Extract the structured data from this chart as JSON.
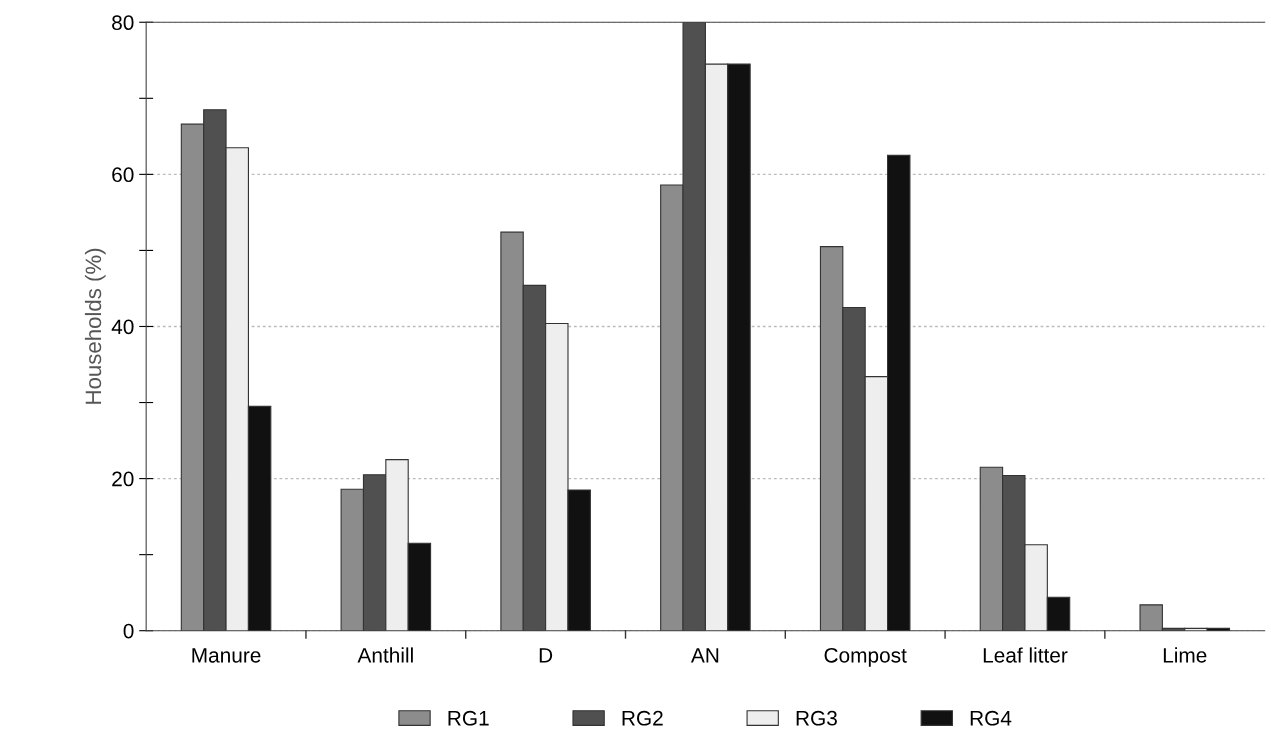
{
  "chart_data": {
    "type": "bar",
    "ylabel": "Households (%)",
    "categories": [
      "Manure",
      "Anthill",
      "D",
      "AN",
      "Compost",
      "Leaf litter",
      "Lime"
    ],
    "series": [
      {
        "name": "RG1",
        "color": "#8c8c8c",
        "values": [
          66.6,
          18.6,
          52.4,
          58.6,
          50.5,
          21.5,
          3.4
        ]
      },
      {
        "name": "RG2",
        "color": "#505050",
        "values": [
          68.5,
          20.5,
          45.4,
          80,
          42.5,
          20.4,
          0.3
        ]
      },
      {
        "name": "RG3",
        "color": "#eeeeee",
        "values": [
          63.5,
          22.5,
          40.4,
          74.5,
          33.4,
          11.3,
          0.3
        ]
      },
      {
        "name": "RG4",
        "color": "#111111",
        "values": [
          29.5,
          11.5,
          18.5,
          74.5,
          62.5,
          4.4,
          0.3
        ]
      }
    ],
    "ylim": [
      0,
      80
    ],
    "yticks": [
      0,
      {
        "value": 10,
        "label": null
      },
      20,
      {
        "value": 30,
        "label": null
      },
      40,
      {
        "value": 50,
        "label": null
      },
      60,
      {
        "value": 70,
        "label": null
      },
      80
    ],
    "grid": "y",
    "legend": "bottom"
  }
}
